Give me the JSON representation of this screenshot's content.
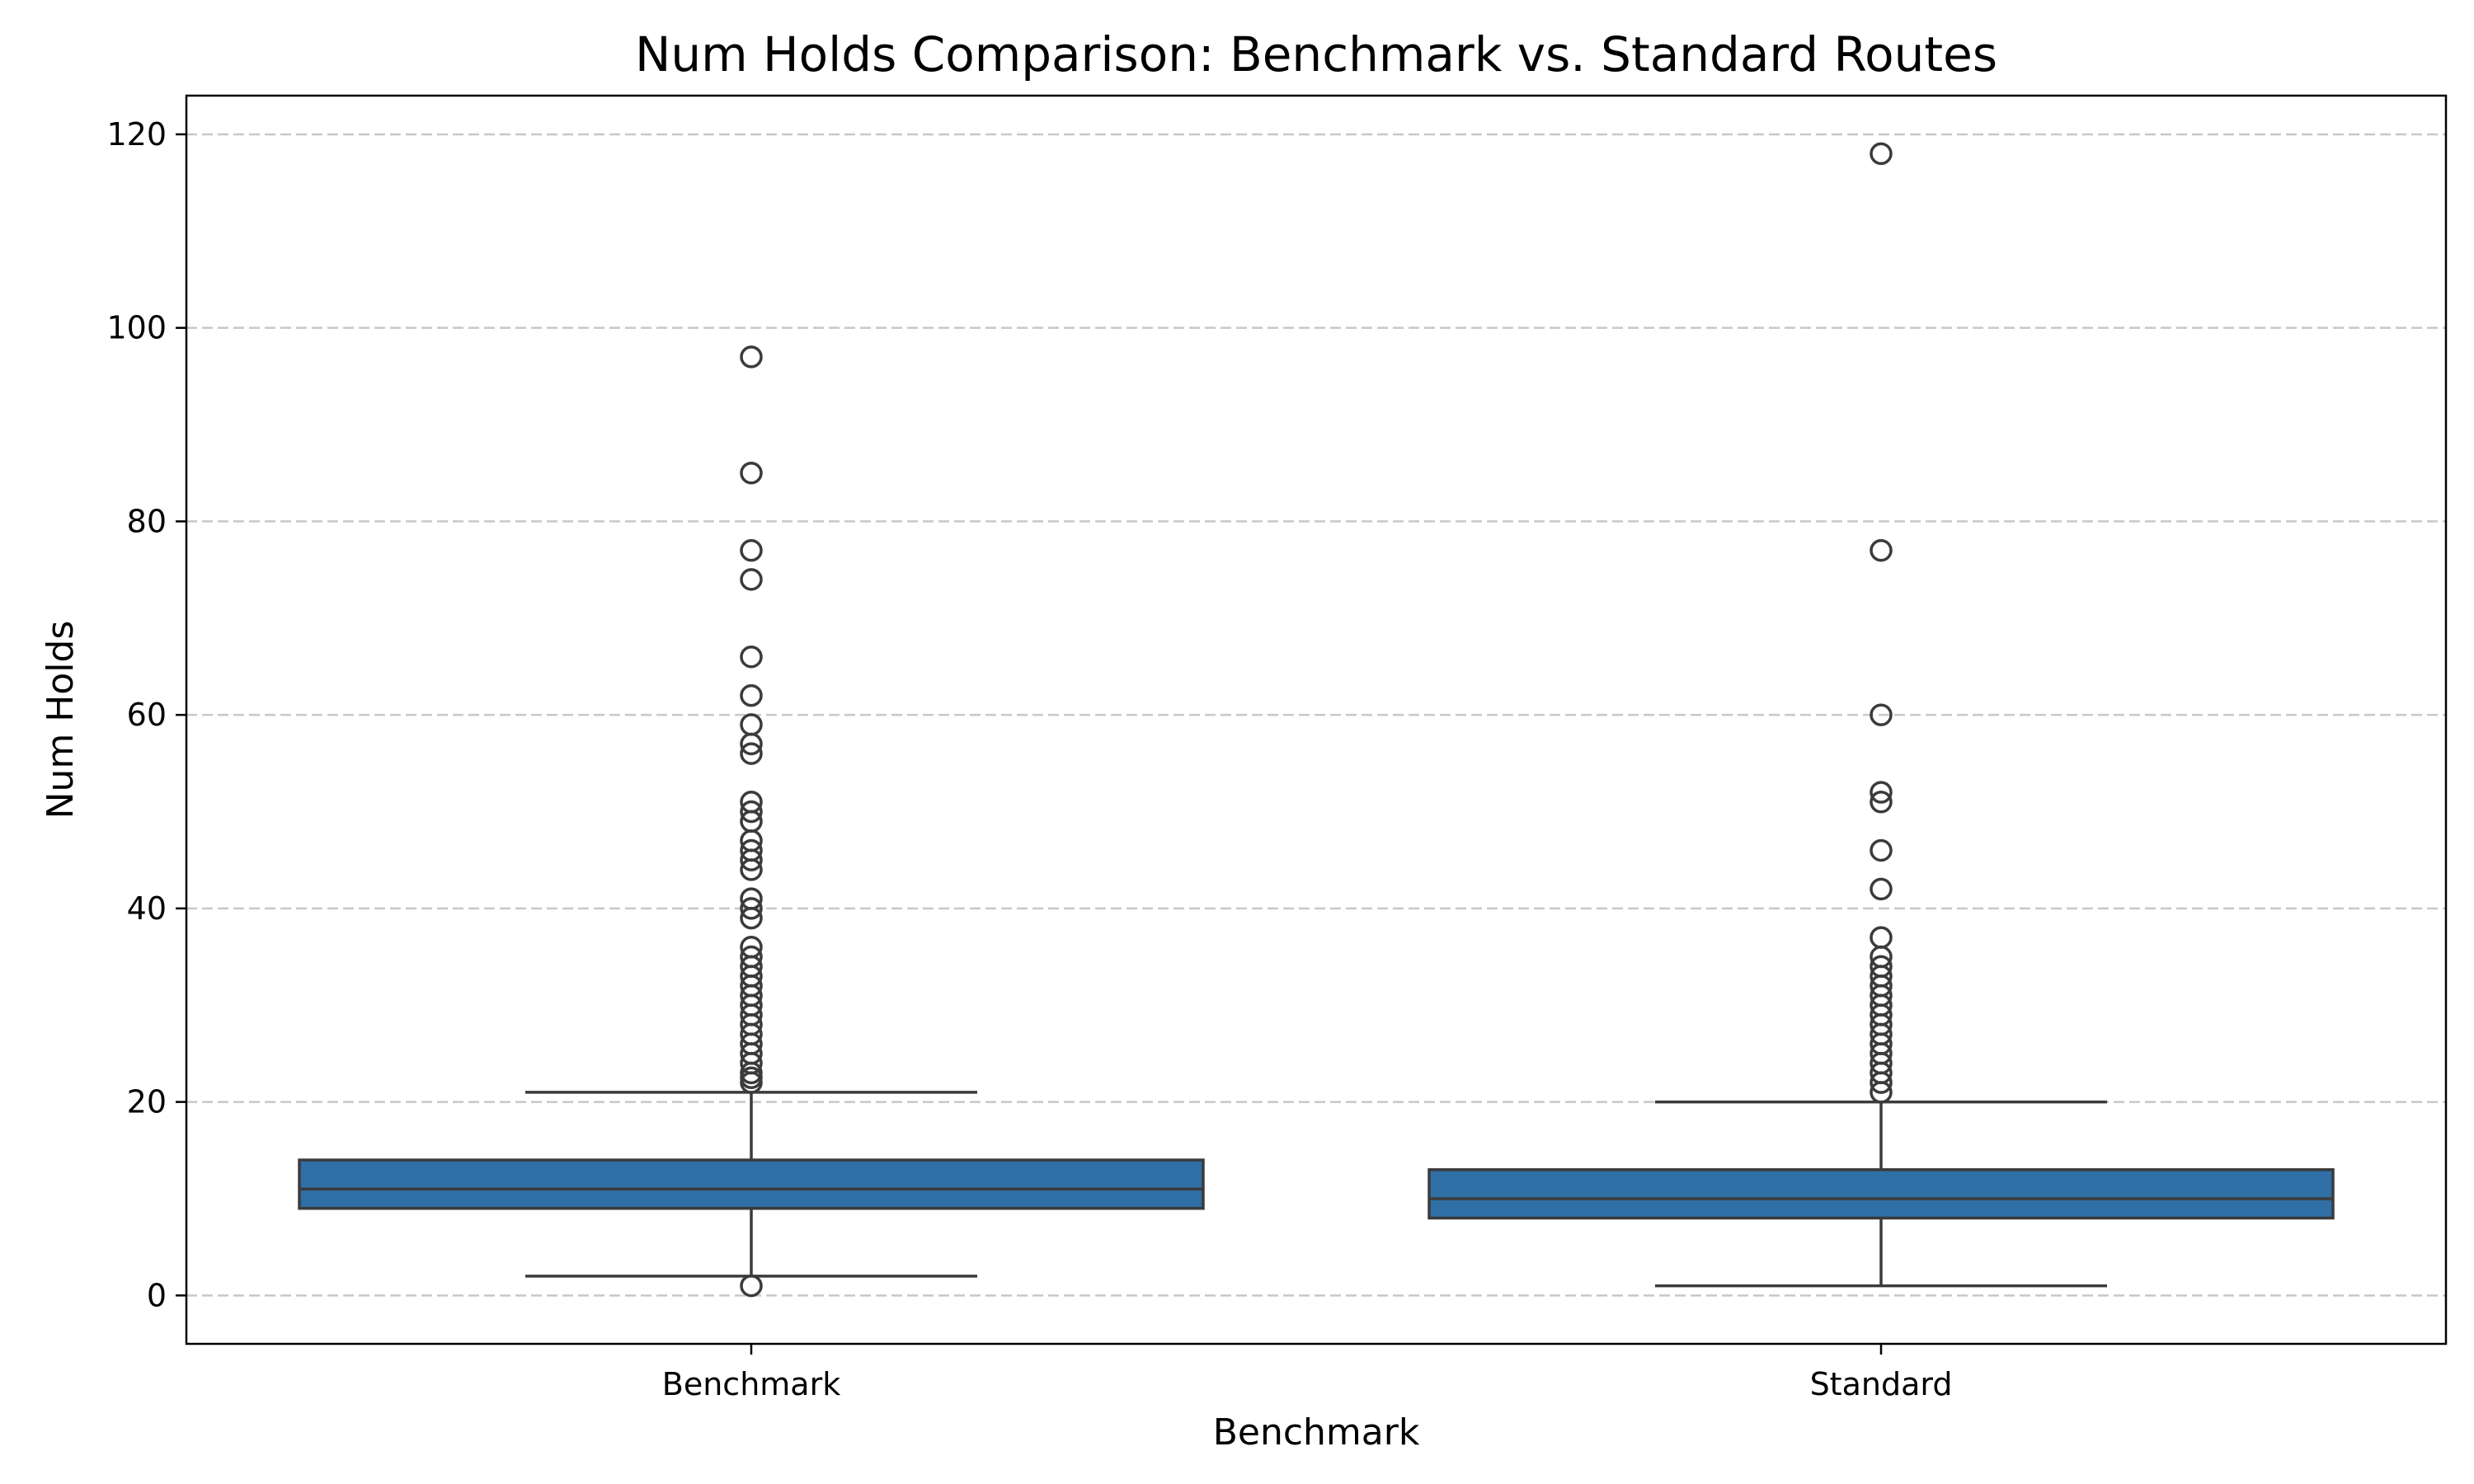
{
  "chart_data": {
    "type": "box",
    "title": "Num Holds Comparison: Benchmark vs. Standard Routes",
    "xlabel": "Benchmark",
    "ylabel": "Num Holds",
    "ylim": [
      -5,
      124
    ],
    "yticks": [
      0,
      20,
      40,
      60,
      80,
      100,
      120
    ],
    "grid": "y-dashed",
    "box_color": "#2f6fa5",
    "edge_color": "#3b3b3b",
    "categories": [
      "Benchmark",
      "Standard"
    ],
    "boxes": [
      {
        "category": "Benchmark",
        "whisker_low": 2,
        "q1": 9,
        "median": 11,
        "q3": 14,
        "whisker_high": 21,
        "outliers": [
          1,
          22,
          22.5,
          23,
          24,
          25,
          26,
          27,
          28,
          29,
          30,
          31,
          32,
          33,
          34,
          35,
          36,
          39,
          40,
          41,
          44,
          45,
          46,
          47,
          49,
          50,
          51,
          56,
          57,
          59,
          62,
          66,
          74,
          77,
          85,
          97
        ]
      },
      {
        "category": "Standard",
        "whisker_low": 1,
        "q1": 8,
        "median": 10,
        "q3": 13,
        "whisker_high": 20,
        "outliers": [
          21,
          22,
          23,
          24,
          25,
          26,
          27,
          28,
          29,
          30,
          31,
          32,
          33,
          34,
          35,
          37,
          42,
          46,
          51,
          52,
          60,
          77,
          118
        ]
      }
    ]
  }
}
